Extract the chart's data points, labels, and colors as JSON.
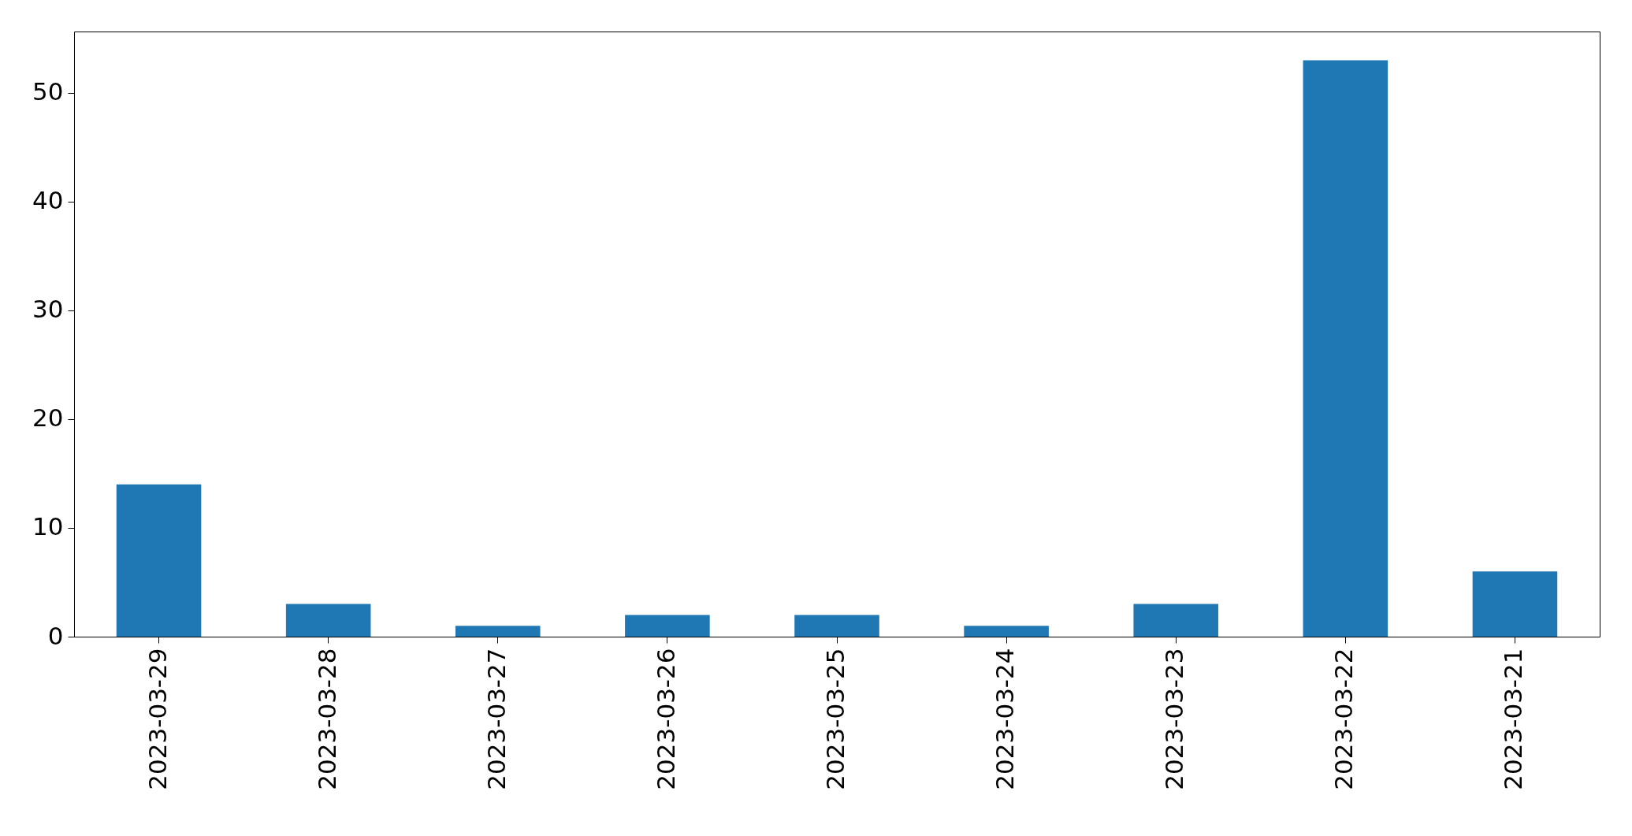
{
  "chart_data": {
    "type": "bar",
    "categories": [
      "2023-03-29",
      "2023-03-28",
      "2023-03-27",
      "2023-03-26",
      "2023-03-25",
      "2023-03-24",
      "2023-03-23",
      "2023-03-22",
      "2023-03-21"
    ],
    "values": [
      14,
      3,
      1,
      2,
      2,
      1,
      3,
      53,
      6
    ],
    "color": "#1f77b4",
    "ylim": [
      0,
      55.65
    ],
    "yticks": [
      0,
      10,
      20,
      30,
      40,
      50
    ]
  }
}
